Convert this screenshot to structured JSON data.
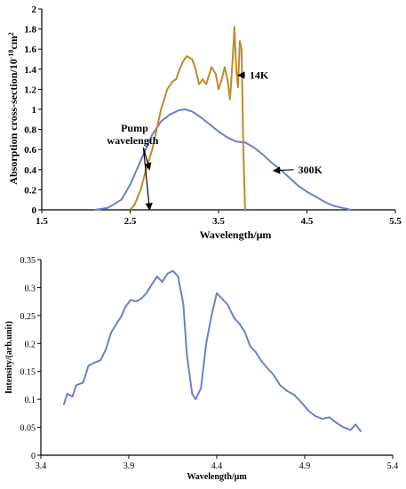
{
  "chart_data": [
    {
      "type": "line",
      "xlabel": "Wavelength/μm",
      "ylabel": "Absorption cross-section/10",
      "ylabel_sup": "-18",
      "ylabel_unit": "cm",
      "ylabel_unit_sup": "2",
      "xlim": [
        1.5,
        5.5
      ],
      "ylim": [
        0,
        2
      ],
      "xticks": [
        "1.5",
        "2.5",
        "3.5",
        "4.5",
        "5.5"
      ],
      "xtick_values": [
        1.5,
        2.5,
        3.5,
        4.5,
        5.5
      ],
      "yticks": [
        "0",
        "0.2",
        "0.4",
        "0.6",
        "0.8",
        "1",
        "1.2",
        "1.4",
        "1.6",
        "1.8",
        "2"
      ],
      "ytick_values": [
        0,
        0.2,
        0.4,
        0.6,
        0.8,
        1,
        1.2,
        1.4,
        1.6,
        1.8,
        2
      ],
      "grid": false,
      "series": [
        {
          "name": "300K",
          "color": "#6f7fc8",
          "points": [
            [
              2.1,
              0
            ],
            [
              2.25,
              0.02
            ],
            [
              2.4,
              0.1
            ],
            [
              2.5,
              0.25
            ],
            [
              2.55,
              0.35
            ],
            [
              2.65,
              0.55
            ],
            [
              2.75,
              0.75
            ],
            [
              2.85,
              0.88
            ],
            [
              2.95,
              0.95
            ],
            [
              3.05,
              0.99
            ],
            [
              3.12,
              1.0
            ],
            [
              3.2,
              0.98
            ],
            [
              3.3,
              0.92
            ],
            [
              3.4,
              0.85
            ],
            [
              3.5,
              0.78
            ],
            [
              3.6,
              0.72
            ],
            [
              3.7,
              0.68
            ],
            [
              3.8,
              0.67
            ],
            [
              3.9,
              0.62
            ],
            [
              4.0,
              0.55
            ],
            [
              4.1,
              0.47
            ],
            [
              4.2,
              0.4
            ],
            [
              4.3,
              0.32
            ],
            [
              4.4,
              0.24
            ],
            [
              4.5,
              0.18
            ],
            [
              4.6,
              0.13
            ],
            [
              4.7,
              0.08
            ],
            [
              4.8,
              0.04
            ],
            [
              4.9,
              0.02
            ],
            [
              5.0,
              0
            ]
          ]
        },
        {
          "name": "14K",
          "color": "#c08a2c",
          "points": [
            [
              2.5,
              0
            ],
            [
              2.55,
              0.05
            ],
            [
              2.62,
              0.2
            ],
            [
              2.68,
              0.4
            ],
            [
              2.75,
              0.6
            ],
            [
              2.8,
              0.8
            ],
            [
              2.85,
              1.0
            ],
            [
              2.92,
              1.2
            ],
            [
              2.98,
              1.28
            ],
            [
              3.02,
              1.3
            ],
            [
              3.06,
              1.4
            ],
            [
              3.1,
              1.48
            ],
            [
              3.14,
              1.53
            ],
            [
              3.2,
              1.5
            ],
            [
              3.24,
              1.4
            ],
            [
              3.28,
              1.25
            ],
            [
              3.32,
              1.3
            ],
            [
              3.36,
              1.25
            ],
            [
              3.42,
              1.42
            ],
            [
              3.47,
              1.35
            ],
            [
              3.5,
              1.2
            ],
            [
              3.53,
              1.28
            ],
            [
              3.57,
              1.42
            ],
            [
              3.6,
              1.3
            ],
            [
              3.63,
              1.1
            ],
            [
              3.66,
              1.5
            ],
            [
              3.68,
              1.82
            ],
            [
              3.7,
              1.4
            ],
            [
              3.72,
              1.22
            ],
            [
              3.74,
              1.68
            ],
            [
              3.76,
              1.6
            ],
            [
              3.78,
              0.6
            ],
            [
              3.8,
              0
            ]
          ]
        }
      ],
      "annotations": [
        {
          "text": "14K",
          "from": [
            3.8,
            1.34
          ],
          "to": [
            3.72,
            1.34
          ]
        },
        {
          "text": "300K",
          "from": [
            4.35,
            0.4
          ],
          "to": [
            4.12,
            0.39
          ]
        },
        {
          "text": "Pump",
          "text2": "wavelength",
          "from": [
            2.65,
            0.62
          ],
          "to": [
            2.72,
            0
          ]
        }
      ]
    },
    {
      "type": "line",
      "xlabel": "Wavelength/μm",
      "ylabel": "Intensity/(arb.unit)",
      "xlim": [
        3.4,
        5.4
      ],
      "ylim": [
        0,
        0.35
      ],
      "xticks": [
        "3.4",
        "3.9",
        "4.4",
        "4.9",
        "5.4"
      ],
      "xtick_values": [
        3.4,
        3.9,
        4.4,
        4.9,
        5.4
      ],
      "yticks": [
        "0",
        "0.05",
        "0.1",
        "0.15",
        "0.2",
        "0.25",
        "0.3",
        "0.35"
      ],
      "ytick_values": [
        0,
        0.05,
        0.1,
        0.15,
        0.2,
        0.25,
        0.3,
        0.35
      ],
      "grid": false,
      "series": [
        {
          "color": "#6f7fc8",
          "points": [
            [
              3.53,
              0.09
            ],
            [
              3.55,
              0.11
            ],
            [
              3.58,
              0.105
            ],
            [
              3.6,
              0.125
            ],
            [
              3.64,
              0.13
            ],
            [
              3.67,
              0.16
            ],
            [
              3.7,
              0.165
            ],
            [
              3.74,
              0.17
            ],
            [
              3.77,
              0.19
            ],
            [
              3.8,
              0.22
            ],
            [
              3.83,
              0.235
            ],
            [
              3.86,
              0.25
            ],
            [
              3.88,
              0.265
            ],
            [
              3.91,
              0.278
            ],
            [
              3.94,
              0.275
            ],
            [
              3.97,
              0.28
            ],
            [
              4.0,
              0.29
            ],
            [
              4.03,
              0.305
            ],
            [
              4.06,
              0.32
            ],
            [
              4.09,
              0.31
            ],
            [
              4.12,
              0.325
            ],
            [
              4.15,
              0.33
            ],
            [
              4.18,
              0.32
            ],
            [
              4.21,
              0.27
            ],
            [
              4.23,
              0.18
            ],
            [
              4.26,
              0.11
            ],
            [
              4.28,
              0.1
            ],
            [
              4.31,
              0.12
            ],
            [
              4.34,
              0.2
            ],
            [
              4.37,
              0.25
            ],
            [
              4.4,
              0.29
            ],
            [
              4.43,
              0.28
            ],
            [
              4.46,
              0.27
            ],
            [
              4.5,
              0.245
            ],
            [
              4.53,
              0.235
            ],
            [
              4.56,
              0.22
            ],
            [
              4.59,
              0.195
            ],
            [
              4.62,
              0.185
            ],
            [
              4.65,
              0.17
            ],
            [
              4.69,
              0.155
            ],
            [
              4.72,
              0.145
            ],
            [
              4.76,
              0.125
            ],
            [
              4.8,
              0.115
            ],
            [
              4.84,
              0.108
            ],
            [
              4.88,
              0.095
            ],
            [
              4.92,
              0.08
            ],
            [
              4.96,
              0.07
            ],
            [
              5.0,
              0.065
            ],
            [
              5.04,
              0.068
            ],
            [
              5.08,
              0.058
            ],
            [
              5.12,
              0.05
            ],
            [
              5.16,
              0.045
            ],
            [
              5.19,
              0.055
            ],
            [
              5.22,
              0.042
            ]
          ]
        }
      ]
    }
  ]
}
